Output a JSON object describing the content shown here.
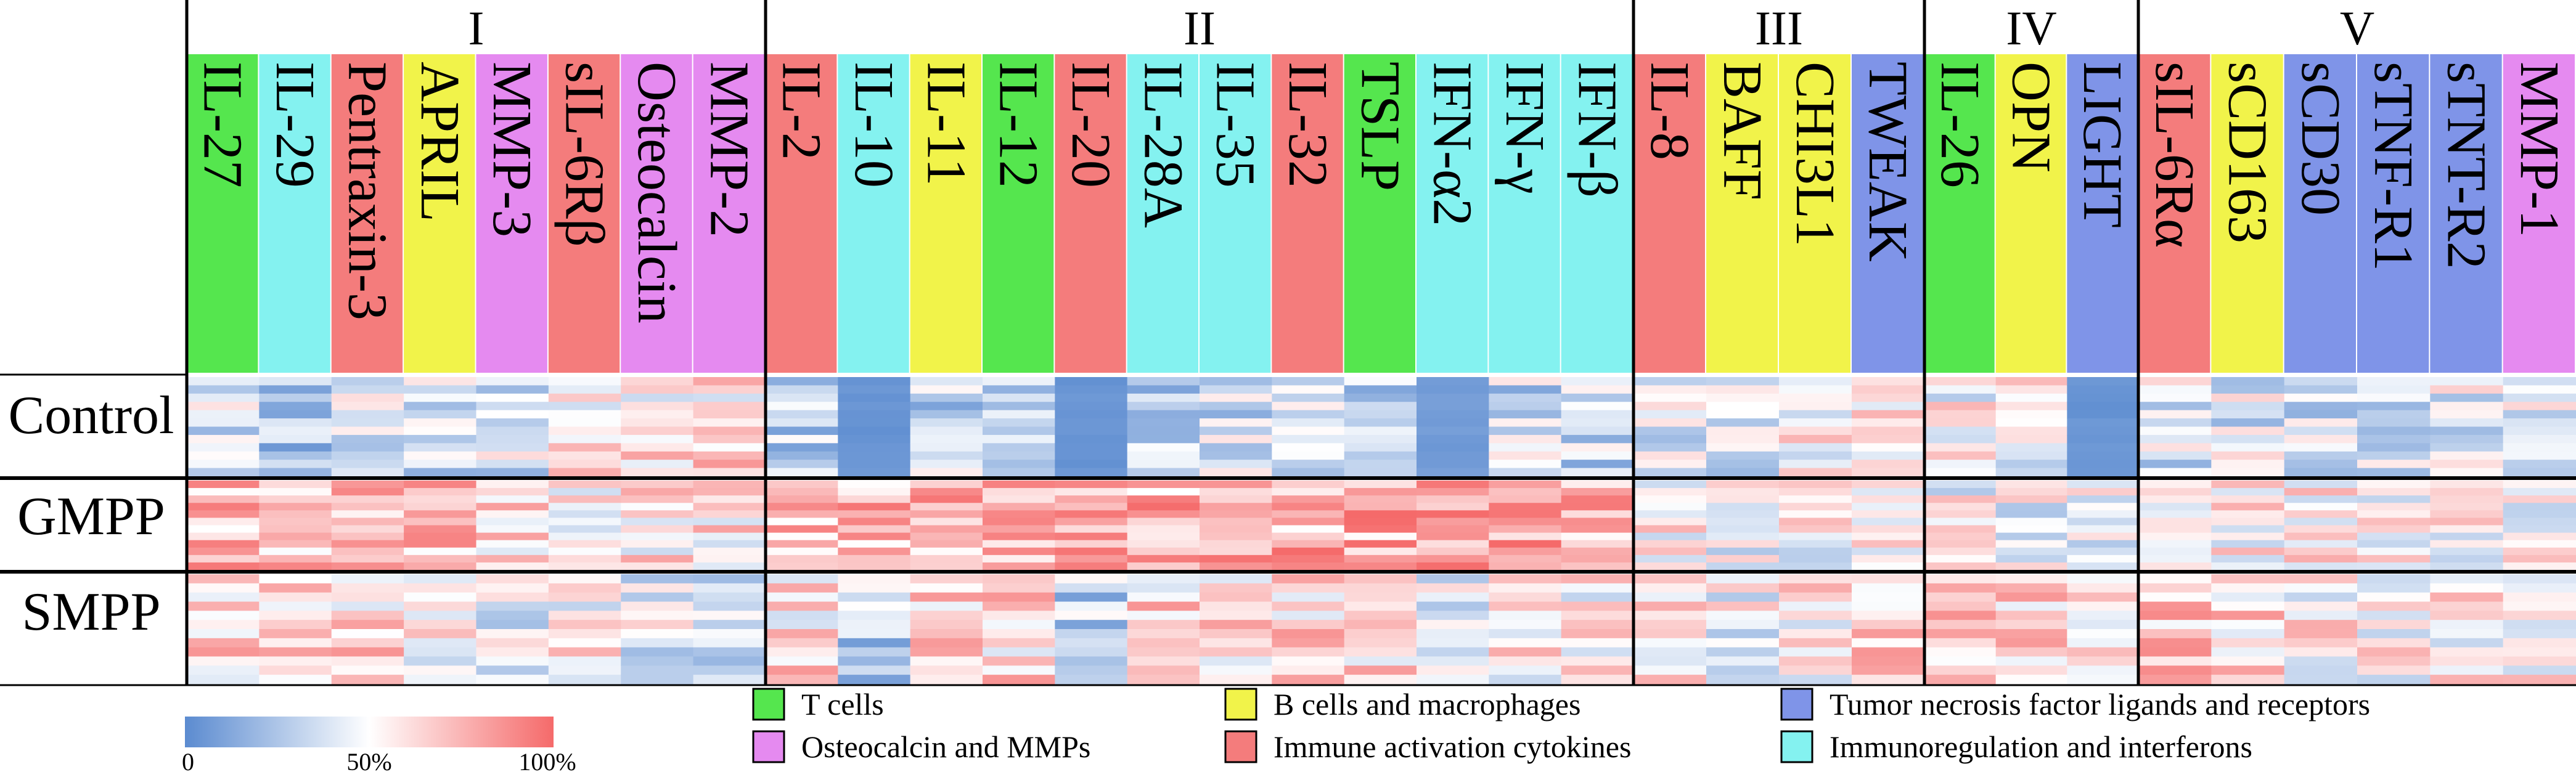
{
  "chart_data": {
    "type": "heatmap",
    "groups": [
      {
        "label": "I",
        "cytokines": [
          "IL-27",
          "IL-29",
          "Pentraxin-3",
          "APRIL",
          "MMP-3",
          "sIL-6Rβ",
          "Osteocalcin",
          "MMP-2"
        ]
      },
      {
        "label": "II",
        "cytokines": [
          "IL-2",
          "IL-10",
          "IL-11",
          "IL-12",
          "IL-20",
          "IL-28A",
          "IL-35",
          "IL-32",
          "TSLP",
          "IFN-α2",
          "IFN-γ",
          "IFN-β"
        ]
      },
      {
        "label": "III",
        "cytokines": [
          "IL-8",
          "BAFF",
          "CHI3L1",
          "TWEAK"
        ]
      },
      {
        "label": "IV",
        "cytokines": [
          "IL-26",
          "OPN",
          "LIGHT"
        ]
      },
      {
        "label": "V",
        "cytokines": [
          "sIL-6Rα",
          "sCD163",
          "sCD30",
          "sTNF-R1",
          "sTNT-R2",
          "MMP-1"
        ]
      }
    ],
    "categories_per_column": [
      "T cells",
      "Immunoregulation and interferons",
      "Immune activation cytokines",
      "B cells and macrophages",
      "Osteocalcin and MMPs",
      "Immune activation cytokines",
      "Osteocalcin and MMPs",
      "Osteocalcin and MMPs",
      "Immune activation cytokines",
      "Immunoregulation and interferons",
      "B cells and macrophages",
      "T cells",
      "Immune activation cytokines",
      "Immunoregulation and interferons",
      "Immunoregulation and interferons",
      "Immune activation cytokines",
      "T cells",
      "Immunoregulation and interferons",
      "Immunoregulation and interferons",
      "Immunoregulation and interferons",
      "Immune activation cytokines",
      "B cells and macrophages",
      "B cells and macrophages",
      "Tumor necrosis factor ligands and receptors",
      "T cells",
      "B cells and macrophages",
      "Tumor necrosis factor ligands and receptors",
      "Immune activation cytokines",
      "B cells and macrophages",
      "Tumor necrosis factor ligands and receptors",
      "Tumor necrosis factor ligands and receptors",
      "Tumor necrosis factor ligands and receptors",
      "Osteocalcin and MMPs"
    ],
    "row_groups": [
      "Control",
      "GMPP",
      "SMPP"
    ],
    "rows_per_group": 12,
    "value_scale": {
      "min_label": "0",
      "mid_label": "50%",
      "max_label": "100%",
      "low_color": "#5b8bd0",
      "mid_color": "#ffffff",
      "high_color": "#f56a6a"
    },
    "group_bias": {
      "Control": [
        0.35,
        0.25,
        0.4,
        0.35,
        0.4,
        0.6,
        0.58,
        0.6,
        0.3,
        0.02,
        0.35,
        0.35,
        0.02,
        0.35,
        0.35,
        0.4,
        0.35,
        0.05,
        0.35,
        0.35,
        0.4,
        0.4,
        0.55,
        0.6,
        0.5,
        0.5,
        0.02,
        0.4,
        0.4,
        0.4,
        0.4,
        0.45,
        0.5
      ],
      "GMPP": [
        0.72,
        0.72,
        0.72,
        0.68,
        0.65,
        0.5,
        0.58,
        0.6,
        0.75,
        0.72,
        0.75,
        0.75,
        0.76,
        0.74,
        0.75,
        0.75,
        0.76,
        0.76,
        0.76,
        0.74,
        0.55,
        0.45,
        0.5,
        0.5,
        0.5,
        0.5,
        0.5,
        0.55,
        0.55,
        0.58,
        0.55,
        0.55,
        0.55
      ],
      "SMPP": [
        0.65,
        0.6,
        0.62,
        0.55,
        0.4,
        0.55,
        0.45,
        0.4,
        0.6,
        0.3,
        0.62,
        0.62,
        0.3,
        0.62,
        0.62,
        0.65,
        0.62,
        0.4,
        0.58,
        0.55,
        0.6,
        0.5,
        0.55,
        0.62,
        0.68,
        0.66,
        0.5,
        0.68,
        0.62,
        0.55,
        0.55,
        0.55,
        0.55
      ]
    },
    "legend": [
      {
        "label": "T cells",
        "color": "#55e64e"
      },
      {
        "label": "Osteocalcin and MMPs",
        "color": "#e58af0"
      },
      {
        "label": "B cells and macrophages",
        "color": "#f1f34a"
      },
      {
        "label": "Immune activation cytokines",
        "color": "#f47c7c"
      },
      {
        "label": "Tumor necrosis factor ligands and receptors",
        "color": "#7f94e8"
      },
      {
        "label": "Immunoregulation  and interferons",
        "color": "#84f2f0"
      }
    ],
    "category_colors": {
      "T cells": "#55e64e",
      "Osteocalcin and MMPs": "#e58af0",
      "B cells and macrophages": "#f1f34a",
      "Immune activation cytokines": "#f47c7c",
      "Tumor necrosis factor ligands and receptors": "#7f94e8",
      "Immunoregulation and interferons": "#84f2f0"
    }
  }
}
